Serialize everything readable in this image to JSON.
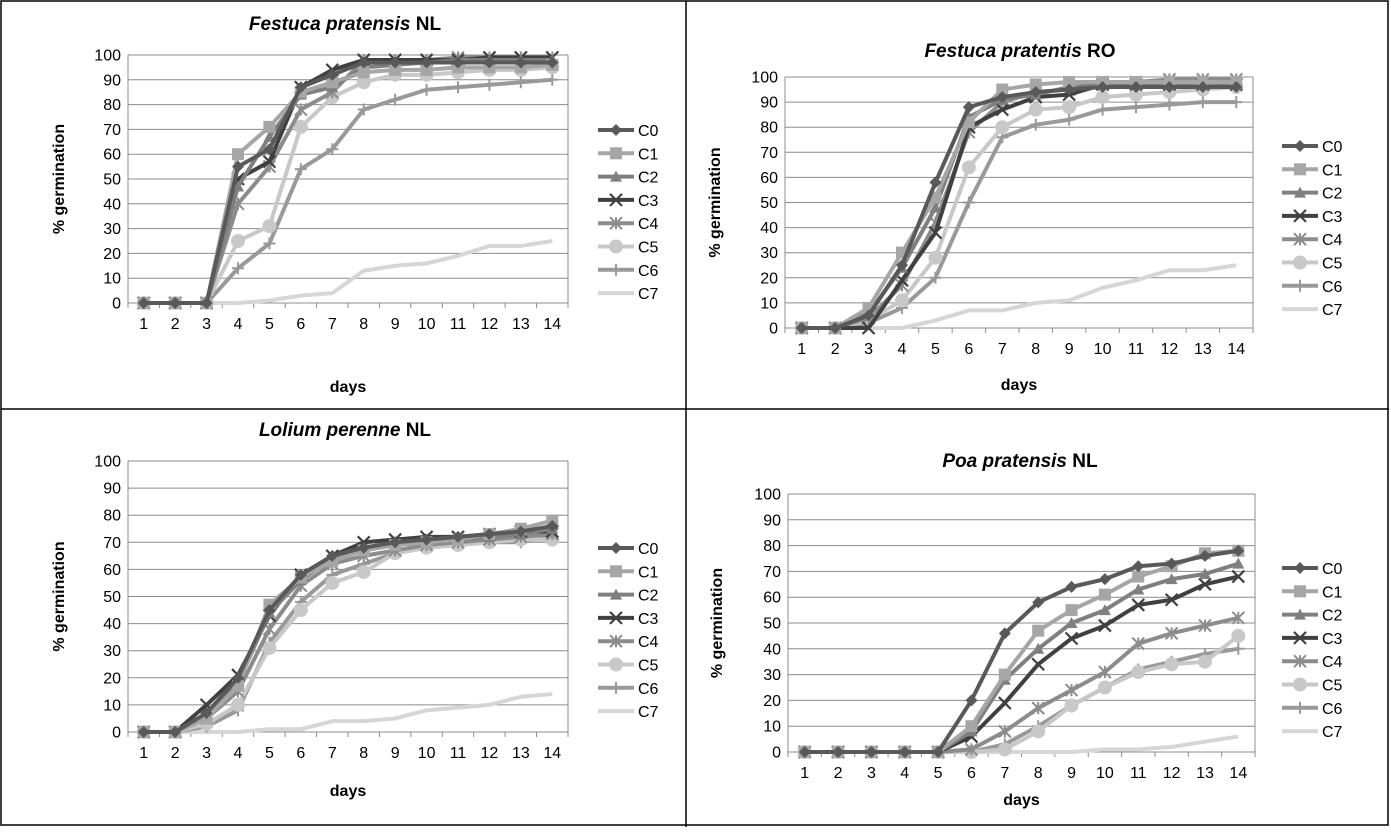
{
  "legend_labels": [
    "C0",
    "C1",
    "C2",
    "C3",
    "C4",
    "C5",
    "C6",
    "C7"
  ],
  "series_styles": [
    {
      "color": "#595959",
      "marker": "diamond"
    },
    {
      "color": "#a6a6a6",
      "marker": "square"
    },
    {
      "color": "#7f7f7f",
      "marker": "triangle"
    },
    {
      "color": "#404040",
      "marker": "x"
    },
    {
      "color": "#8c8c8c",
      "marker": "asterisk"
    },
    {
      "color": "#c8c8c8",
      "marker": "circle"
    },
    {
      "color": "#999999",
      "marker": "plus"
    },
    {
      "color": "#d6d6d6",
      "marker": "none"
    }
  ],
  "chart_data": [
    {
      "type": "line",
      "title_italic": "Festuca pratensis",
      "title_suffix": " NL",
      "xlabel": "days",
      "ylabel": "% germination",
      "ylim": [
        0,
        100
      ],
      "yticks": [
        0,
        10,
        20,
        30,
        40,
        50,
        60,
        70,
        80,
        90,
        100
      ],
      "x": [
        1,
        2,
        3,
        4,
        5,
        6,
        7,
        8,
        9,
        10,
        11,
        12,
        13,
        14
      ],
      "grid": true,
      "legend": "right",
      "series": [
        {
          "name": "C0",
          "values": [
            0,
            0,
            0,
            55,
            62,
            87,
            92,
            97,
            97,
            97,
            97,
            97,
            97,
            97
          ]
        },
        {
          "name": "C1",
          "values": [
            0,
            0,
            0,
            60,
            71,
            85,
            89,
            93,
            94,
            94,
            95,
            95,
            95,
            96
          ]
        },
        {
          "name": "C2",
          "values": [
            0,
            0,
            0,
            47,
            67,
            84,
            87,
            95,
            96,
            97,
            98,
            98,
            98,
            98
          ]
        },
        {
          "name": "C3",
          "values": [
            0,
            0,
            0,
            50,
            57,
            87,
            94,
            98,
            98,
            98,
            98,
            99,
            99,
            99
          ]
        },
        {
          "name": "C4",
          "values": [
            0,
            0,
            0,
            40,
            55,
            78,
            85,
            98,
            98,
            98,
            99,
            99,
            99,
            99
          ]
        },
        {
          "name": "C5",
          "values": [
            0,
            0,
            0,
            25,
            31,
            71,
            83,
            89,
            92,
            92,
            93,
            94,
            94,
            95
          ]
        },
        {
          "name": "C6",
          "values": [
            0,
            0,
            0,
            14,
            24,
            54,
            62,
            78,
            82,
            86,
            87,
            88,
            89,
            90
          ]
        },
        {
          "name": "C7",
          "values": [
            0,
            0,
            0,
            0,
            1,
            3,
            4,
            13,
            15,
            16,
            19,
            23,
            23,
            25
          ]
        }
      ]
    },
    {
      "type": "line",
      "title_italic": "Festuca pratentis",
      "title_suffix": " RO",
      "xlabel": "days",
      "ylabel": "% germination",
      "ylim": [
        0,
        100
      ],
      "yticks": [
        0,
        10,
        20,
        30,
        40,
        50,
        60,
        70,
        80,
        90,
        100
      ],
      "x": [
        1,
        2,
        3,
        4,
        5,
        6,
        7,
        8,
        9,
        10,
        11,
        12,
        13,
        14
      ],
      "grid": true,
      "legend": "right",
      "series": [
        {
          "name": "C0",
          "values": [
            0,
            0,
            5,
            25,
            58,
            88,
            92,
            94,
            95,
            96,
            96,
            96,
            96,
            96
          ]
        },
        {
          "name": "C1",
          "values": [
            0,
            0,
            8,
            30,
            52,
            82,
            95,
            97,
            98,
            98,
            98,
            98,
            98,
            98
          ]
        },
        {
          "name": "C2",
          "values": [
            0,
            0,
            6,
            24,
            48,
            84,
            91,
            93,
            96,
            97,
            97,
            97,
            97,
            97
          ]
        },
        {
          "name": "C3",
          "values": [
            0,
            0,
            0,
            19,
            38,
            80,
            87,
            92,
            93,
            97,
            97,
            97,
            97,
            97
          ]
        },
        {
          "name": "C4",
          "values": [
            0,
            0,
            4,
            17,
            42,
            78,
            90,
            94,
            95,
            98,
            98,
            99,
            99,
            99
          ]
        },
        {
          "name": "C5",
          "values": [
            0,
            0,
            3,
            11,
            28,
            64,
            80,
            87,
            88,
            92,
            93,
            94,
            95,
            96
          ]
        },
        {
          "name": "C6",
          "values": [
            0,
            0,
            2,
            8,
            20,
            50,
            76,
            81,
            83,
            87,
            88,
            89,
            90,
            90
          ]
        },
        {
          "name": "C7",
          "values": [
            0,
            0,
            0,
            0,
            3,
            7,
            7,
            10,
            11,
            16,
            19,
            23,
            23,
            25
          ]
        }
      ]
    },
    {
      "type": "line",
      "title_italic": "Lolium perenne",
      "title_suffix": " NL",
      "xlabel": "days",
      "ylabel": "% germination",
      "ylim": [
        0,
        100
      ],
      "yticks": [
        0,
        10,
        20,
        30,
        40,
        50,
        60,
        70,
        80,
        90,
        100
      ],
      "x": [
        1,
        2,
        3,
        4,
        5,
        6,
        7,
        8,
        9,
        10,
        11,
        12,
        13,
        14
      ],
      "grid": true,
      "legend": "right",
      "series": [
        {
          "name": "C0",
          "values": [
            0,
            0,
            7,
            20,
            45,
            58,
            65,
            68,
            70,
            71,
            72,
            73,
            74,
            76
          ]
        },
        {
          "name": "C1",
          "values": [
            0,
            0,
            5,
            17,
            47,
            57,
            63,
            67,
            69,
            70,
            71,
            73,
            75,
            78
          ]
        },
        {
          "name": "C2",
          "values": [
            0,
            0,
            6,
            18,
            44,
            56,
            64,
            67,
            69,
            70,
            71,
            72,
            73,
            75
          ]
        },
        {
          "name": "C3",
          "values": [
            0,
            0,
            10,
            21,
            43,
            58,
            65,
            70,
            71,
            72,
            72,
            73,
            74,
            74
          ]
        },
        {
          "name": "C4",
          "values": [
            0,
            0,
            5,
            15,
            38,
            54,
            62,
            65,
            67,
            69,
            70,
            71,
            72,
            73
          ]
        },
        {
          "name": "C5",
          "values": [
            0,
            0,
            3,
            10,
            31,
            45,
            55,
            59,
            66,
            68,
            69,
            70,
            71,
            71
          ]
        },
        {
          "name": "C6",
          "values": [
            0,
            0,
            2,
            8,
            33,
            48,
            58,
            62,
            66,
            68,
            69,
            70,
            70,
            72
          ]
        },
        {
          "name": "C7",
          "values": [
            0,
            0,
            0,
            0,
            1,
            1,
            4,
            4,
            5,
            8,
            9,
            10,
            13,
            14
          ]
        }
      ]
    },
    {
      "type": "line",
      "title_italic": "Poa pratensis",
      "title_suffix": " NL",
      "xlabel": "days",
      "ylabel": "% germination",
      "ylim": [
        0,
        100
      ],
      "yticks": [
        0,
        10,
        20,
        30,
        40,
        50,
        60,
        70,
        80,
        90,
        100
      ],
      "x": [
        1,
        2,
        3,
        4,
        5,
        6,
        7,
        8,
        9,
        10,
        11,
        12,
        13,
        14
      ],
      "grid": true,
      "legend": "right",
      "series": [
        {
          "name": "C0",
          "values": [
            0,
            0,
            0,
            0,
            0,
            20,
            46,
            58,
            64,
            67,
            72,
            73,
            76,
            78
          ]
        },
        {
          "name": "C1",
          "values": [
            0,
            0,
            0,
            0,
            0,
            10,
            30,
            47,
            55,
            61,
            68,
            72,
            77,
            78
          ]
        },
        {
          "name": "C2",
          "values": [
            0,
            0,
            0,
            0,
            0,
            8,
            28,
            40,
            50,
            55,
            63,
            67,
            69,
            73
          ]
        },
        {
          "name": "C3",
          "values": [
            0,
            0,
            0,
            0,
            0,
            6,
            19,
            34,
            44,
            49,
            57,
            59,
            65,
            68
          ]
        },
        {
          "name": "C4",
          "values": [
            0,
            0,
            0,
            0,
            0,
            1,
            8,
            17,
            24,
            31,
            42,
            46,
            49,
            52
          ]
        },
        {
          "name": "C5",
          "values": [
            0,
            0,
            0,
            0,
            0,
            0,
            1,
            8,
            18,
            25,
            31,
            34,
            35,
            45
          ]
        },
        {
          "name": "C6",
          "values": [
            0,
            0,
            0,
            0,
            0,
            0,
            3,
            10,
            18,
            25,
            32,
            35,
            38,
            40
          ]
        },
        {
          "name": "C7",
          "values": [
            0,
            0,
            0,
            0,
            0,
            0,
            0,
            0,
            0,
            1,
            1,
            2,
            4,
            6
          ]
        }
      ]
    }
  ]
}
